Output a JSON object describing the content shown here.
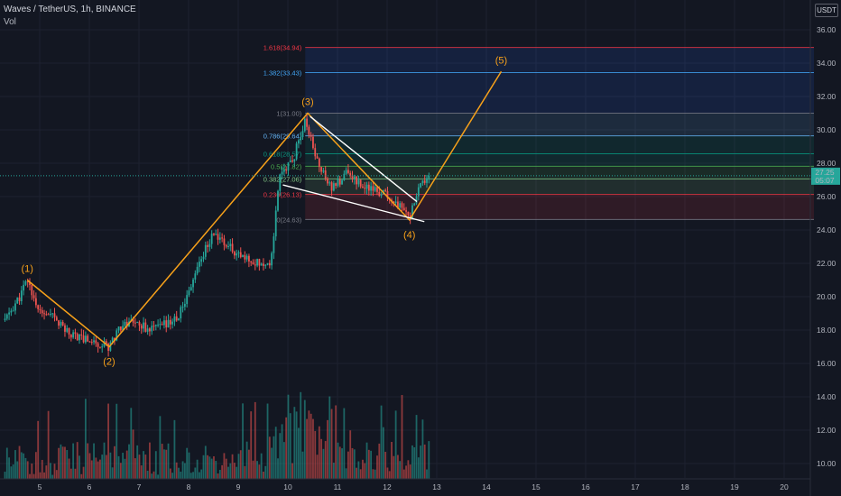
{
  "header": {
    "symbol": "Waves / TetherUS, 1h, BINANCE",
    "volume_label": "Vol"
  },
  "axis": {
    "unit": "USDT"
  },
  "price_tag": {
    "price": "27.25",
    "countdown": "05:07"
  },
  "colors": {
    "background": "#131722",
    "up": "#26a69a",
    "down": "#ef5350",
    "wave": "#f7a11a",
    "trend": "#ffffff",
    "grid": "#1e2230"
  },
  "chart_data": {
    "type": "candlestick",
    "y_ticks": [
      10,
      12,
      14,
      16,
      18,
      20,
      22,
      24,
      26,
      28,
      30,
      32,
      34,
      36
    ],
    "x_ticks": [
      "5",
      "6",
      "7",
      "8",
      "9",
      "10",
      "11",
      "12",
      "13",
      "14",
      "15",
      "16",
      "17",
      "18",
      "19",
      "20"
    ],
    "ylim": [
      9.2,
      37.2
    ],
    "last_price": 27.25,
    "price_path": [
      [
        4.3,
        18.6
      ],
      [
        4.6,
        20.0
      ],
      [
        4.75,
        21.0
      ],
      [
        5.0,
        19.0
      ],
      [
        5.3,
        18.7
      ],
      [
        5.6,
        17.8
      ],
      [
        5.9,
        17.5
      ],
      [
        6.2,
        17.2
      ],
      [
        6.4,
        17.0
      ],
      [
        6.6,
        18.2
      ],
      [
        6.9,
        18.6
      ],
      [
        7.2,
        18.0
      ],
      [
        7.5,
        18.3
      ],
      [
        7.8,
        18.8
      ],
      [
        8.0,
        20.3
      ],
      [
        8.2,
        22.0
      ],
      [
        8.5,
        23.8
      ],
      [
        8.8,
        23.0
      ],
      [
        9.1,
        22.3
      ],
      [
        9.5,
        22.0
      ],
      [
        9.65,
        22.0
      ],
      [
        9.85,
        27.5
      ],
      [
        10.1,
        28.2
      ],
      [
        10.35,
        30.6
      ],
      [
        10.6,
        28.0
      ],
      [
        10.9,
        26.5
      ],
      [
        11.2,
        27.5
      ],
      [
        11.5,
        26.6
      ],
      [
        11.9,
        26.2
      ],
      [
        12.2,
        25.6
      ],
      [
        12.45,
        24.7
      ],
      [
        12.65,
        26.5
      ],
      [
        12.85,
        27.25
      ]
    ],
    "fib_levels": [
      {
        "label": "0(24.63)",
        "ratio": "0",
        "price": 24.63,
        "color": "#787b86"
      },
      {
        "label": "0.236(26.13)",
        "ratio": "0.236",
        "price": 26.13,
        "color": "#f23645"
      },
      {
        "label": "0.382(27.06)",
        "ratio": "0.382",
        "price": 27.06,
        "color": "#81c784"
      },
      {
        "label": "0.5(27.82)",
        "ratio": "0.5",
        "price": 27.82,
        "color": "#4caf50"
      },
      {
        "label": "0.618(28.57)",
        "ratio": "0.618",
        "price": 28.57,
        "color": "#089981"
      },
      {
        "label": "0.786(29.64)",
        "ratio": "0.786",
        "price": 29.64,
        "color": "#64b5f6"
      },
      {
        "label": "1(31.00)",
        "ratio": "1",
        "price": 31.0,
        "color": "#787b86"
      },
      {
        "label": "1.382(33.43)",
        "ratio": "1.382",
        "price": 33.43,
        "color": "#42a5f5"
      },
      {
        "label": "1.618(34.94)",
        "ratio": "1.618",
        "price": 34.94,
        "color": "#f23645"
      }
    ],
    "fib_range_x": [
      10.35,
      20.6
    ],
    "elliott_waves": [
      {
        "label": "(1)",
        "x": 4.75,
        "y": 21.0
      },
      {
        "label": "(2)",
        "x": 6.4,
        "y": 17.0
      },
      {
        "label": "(3)",
        "x": 10.4,
        "y": 31.0
      },
      {
        "label": "(4)",
        "x": 12.45,
        "y": 24.6
      },
      {
        "label": "(5)",
        "x": 14.3,
        "y": 33.5
      }
    ],
    "wedge": {
      "upper": [
        [
          10.45,
          30.8
        ],
        [
          12.6,
          25.7
        ]
      ],
      "lower": [
        [
          9.9,
          26.7
        ],
        [
          12.75,
          24.5
        ]
      ]
    }
  }
}
